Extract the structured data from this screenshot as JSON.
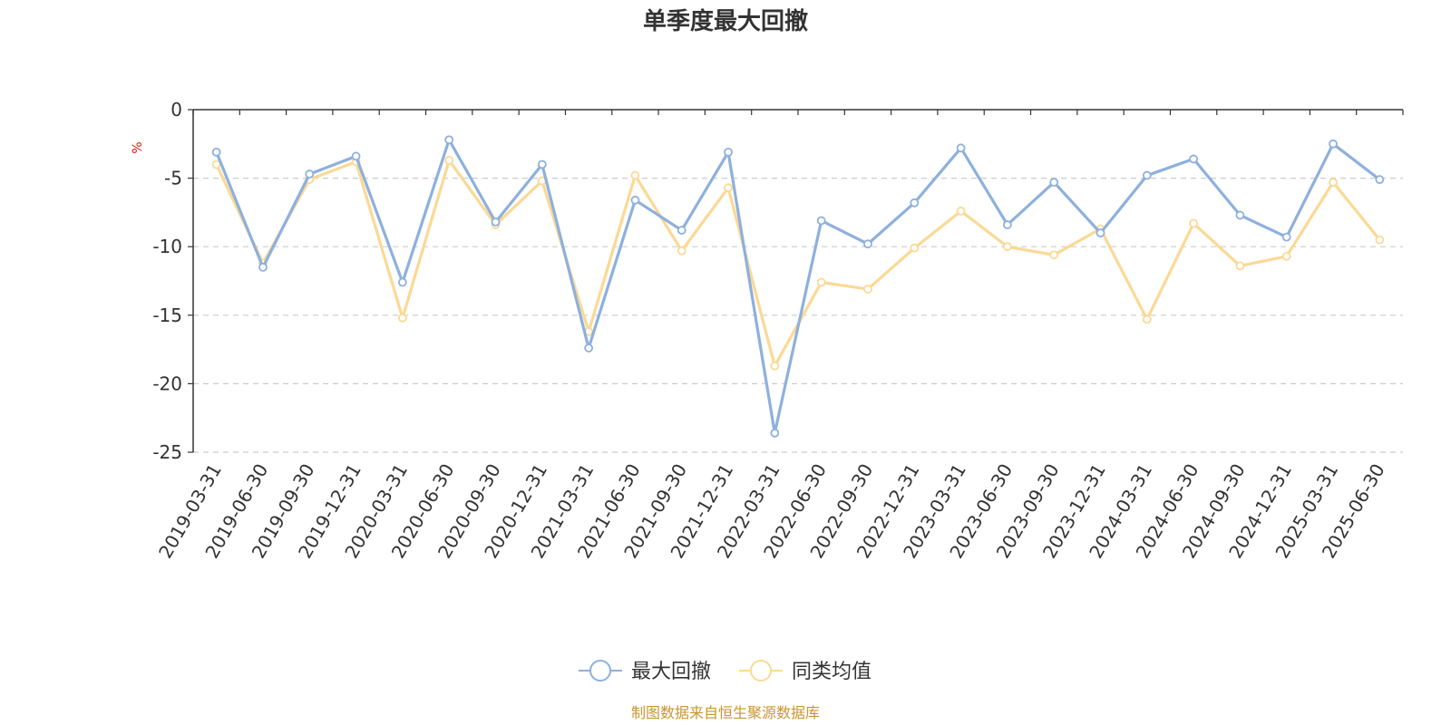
{
  "chart_data": {
    "type": "line",
    "title": "单季度最大回撤",
    "ylabel": "%",
    "ylim": [
      -25,
      0
    ],
    "yticks": [
      0,
      -5,
      -10,
      -15,
      -20,
      -25
    ],
    "grid": "horizontal dashed",
    "legend_position": "bottom-center",
    "categories": [
      "2019-03-31",
      "2019-06-30",
      "2019-09-30",
      "2019-12-31",
      "2020-03-31",
      "2020-06-30",
      "2020-09-30",
      "2020-12-31",
      "2021-03-31",
      "2021-06-30",
      "2021-09-30",
      "2021-12-31",
      "2022-03-31",
      "2022-06-30",
      "2022-09-30",
      "2022-12-31",
      "2023-03-31",
      "2023-06-30",
      "2023-09-30",
      "2023-12-31",
      "2024-03-31",
      "2024-06-30",
      "2024-09-30",
      "2024-12-31",
      "2025-03-31",
      "2025-06-30"
    ],
    "series": [
      {
        "name": "最大回撤",
        "color": "#8eb0dd",
        "values": [
          -3.1,
          -11.5,
          -4.7,
          -3.4,
          -12.6,
          -2.2,
          -8.2,
          -4.0,
          -17.4,
          -6.6,
          -8.8,
          -3.1,
          -23.6,
          -8.1,
          -9.8,
          -6.8,
          -2.8,
          -8.4,
          -5.3,
          -9.0,
          -4.8,
          -3.6,
          -7.7,
          -9.3,
          -2.5,
          -5.1
        ]
      },
      {
        "name": "同类均值",
        "color": "#fbd995",
        "values": [
          -4.0,
          -11.2,
          -5.1,
          -3.8,
          -15.2,
          -3.7,
          -8.4,
          -5.2,
          -16.2,
          -4.8,
          -10.3,
          -5.7,
          -18.7,
          -12.6,
          -13.1,
          -10.1,
          -7.4,
          -10.0,
          -10.6,
          -8.7,
          -15.3,
          -8.3,
          -11.4,
          -10.7,
          -5.3,
          -9.5
        ]
      }
    ]
  },
  "source": {
    "text": "制图数据来自恒生聚源数据库",
    "color": "#c9962f"
  },
  "colors": {
    "axis": "#333333",
    "grid": "#cccccc",
    "unit": "#e8110a"
  }
}
